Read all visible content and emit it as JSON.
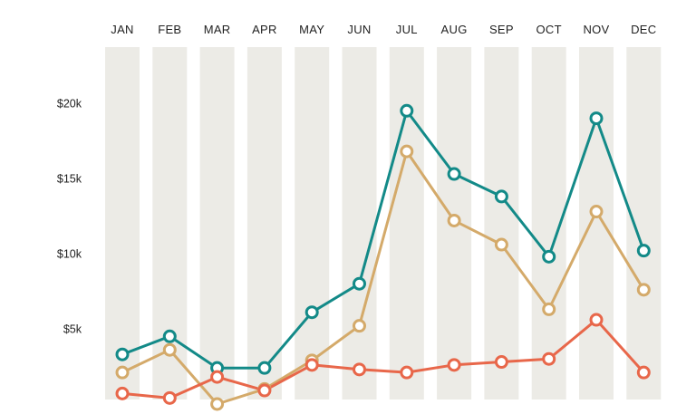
{
  "chart_data": {
    "type": "line",
    "categories": [
      "JAN",
      "FEB",
      "MAR",
      "APR",
      "MAY",
      "JUN",
      "JUL",
      "AUG",
      "SEP",
      "OCT",
      "NOV",
      "DEC"
    ],
    "y_ticks": [
      {
        "value": 5000,
        "label": "$5k"
      },
      {
        "value": 10000,
        "label": "$10k"
      },
      {
        "value": 15000,
        "label": "$15k"
      },
      {
        "value": 20000,
        "label": "$20k"
      }
    ],
    "ylim": [
      0,
      23000
    ],
    "series": [
      {
        "color": "#138a88",
        "values": [
          3300,
          4500,
          2400,
          2400,
          6100,
          8000,
          19500,
          15300,
          13800,
          9800,
          19000,
          10200
        ]
      },
      {
        "color": "#d4aa6a",
        "values": [
          2100,
          3600,
          0,
          1000,
          2900,
          5200,
          16800,
          12200,
          10600,
          6300,
          12800,
          7600
        ]
      },
      {
        "color": "#e8674a",
        "values": [
          700,
          400,
          1800,
          900,
          2600,
          2300,
          2100,
          2600,
          2800,
          3000,
          5600,
          2100
        ]
      }
    ],
    "grid": false,
    "legend": "none"
  }
}
